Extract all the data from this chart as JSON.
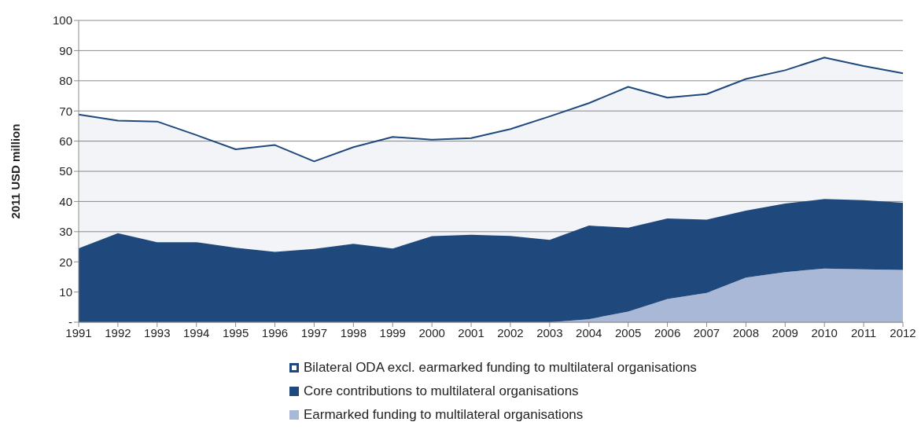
{
  "chart_data": {
    "type": "area",
    "stacked": true,
    "ylabel": "2011 USD million",
    "categories": [
      "1991",
      "1992",
      "1993",
      "1994",
      "1995",
      "1996",
      "1997",
      "1998",
      "1999",
      "2000",
      "2001",
      "2002",
      "2003",
      "2004",
      "2005",
      "2006",
      "2007",
      "2008",
      "2009",
      "2010",
      "2011",
      "2012"
    ],
    "series": [
      {
        "name": "Earmarked funding to multilateral organisations",
        "color": "#a9b8d6",
        "values": [
          0,
          0,
          0,
          0,
          0,
          0,
          0,
          0,
          0,
          0,
          0,
          0,
          0,
          1,
          3.5,
          7.7,
          9.7,
          14.8,
          16.6,
          17.8,
          17.5,
          17.3
        ]
      },
      {
        "name": "Core contributions to multilateral organisations",
        "color": "#1f497d",
        "values": [
          24.5,
          29.5,
          26.5,
          26.5,
          24.7,
          23.3,
          24.3,
          26,
          24.4,
          28.5,
          29,
          28.6,
          27.3,
          31,
          27.8,
          26.7,
          24.3,
          22.2,
          22.7,
          23,
          22.9,
          22.3
        ]
      },
      {
        "name": "Bilateral ODA excl. earmarked funding to multilateral organisations",
        "color": "#1f497d",
        "values": [
          44.3,
          37.3,
          40,
          35.5,
          32.6,
          35.4,
          29,
          32,
          37,
          32,
          32,
          35.4,
          40.9,
          40.6,
          46.7,
          40,
          41.6,
          43.6,
          44.2,
          46.9,
          44.5,
          42.9
        ]
      }
    ],
    "ylim": [
      0,
      100
    ],
    "yticks": [
      {
        "value": 0,
        "label": "-"
      },
      10,
      20,
      30,
      40,
      50,
      60,
      70,
      80,
      90,
      100
    ],
    "grid": "y",
    "legend": "bottom"
  }
}
